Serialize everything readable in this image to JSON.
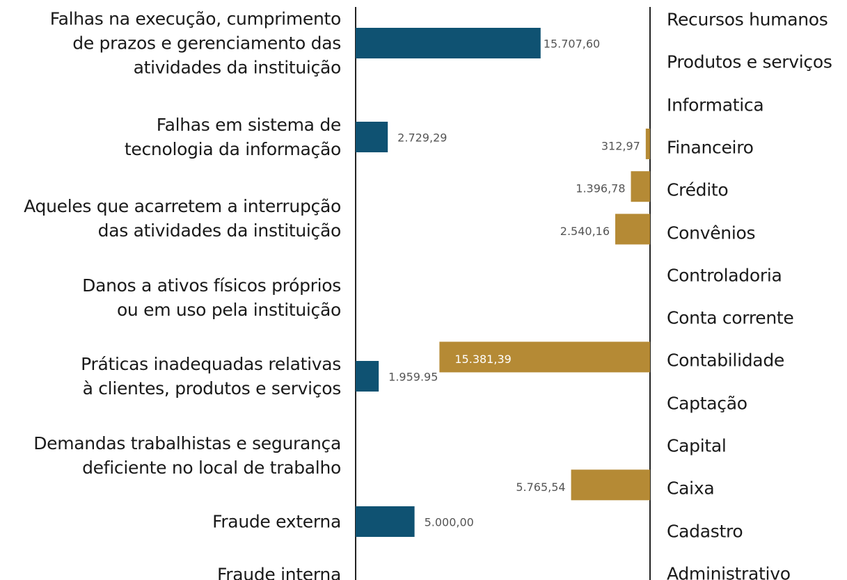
{
  "chart_data": [
    {
      "type": "bar",
      "orientation": "horizontal",
      "bar_direction": "right",
      "color": "#0f5272",
      "categories": [
        "Falhas na execução, cumprimento\nde prazos e gerenciamento das\natividades da instituição",
        "Falhas em sistema de\ntecnologia da informação",
        "Aqueles que acarretem a interrupção\ndas atividades da instituição",
        "Danos a ativos físicos próprios\nou em uso pela instituição",
        "Práticas inadequadas relativas\nà clientes, produtos e serviços",
        "Demandas trabalhistas e segurança\ndeficiente no local de trabalho",
        "Fraude externa",
        "Fraude interna"
      ],
      "values": [
        15707.6,
        2729.29,
        null,
        null,
        1959.95,
        null,
        5000,
        null
      ],
      "value_labels": [
        "15.707,60",
        "2.729,29",
        null,
        null,
        "1.959.95",
        null,
        "5.000,00",
        null
      ],
      "xlim": [
        0,
        25000
      ]
    },
    {
      "type": "bar",
      "orientation": "horizontal",
      "bar_direction": "left",
      "color": "#b58a35",
      "categories": [
        "Recursos humanos",
        "Produtos e serviços",
        "Informatica",
        "Financeiro",
        "Crédito",
        "Convênios",
        "Controladoria",
        "Conta corrente",
        "Contabilidade",
        "Captação",
        "Capital",
        "Caixa",
        "Cadastro",
        "Administrativo"
      ],
      "values": [
        null,
        null,
        null,
        312.97,
        1396.78,
        2540.16,
        null,
        null,
        15381.39,
        null,
        null,
        5765.54,
        null,
        null
      ],
      "value_labels": [
        null,
        null,
        null,
        "312,97",
        "1.396,78",
        "2.540,16",
        null,
        null,
        "15.381,39",
        null,
        null,
        "5.765,54",
        null,
        null
      ],
      "xlim": [
        0,
        21500
      ]
    }
  ]
}
